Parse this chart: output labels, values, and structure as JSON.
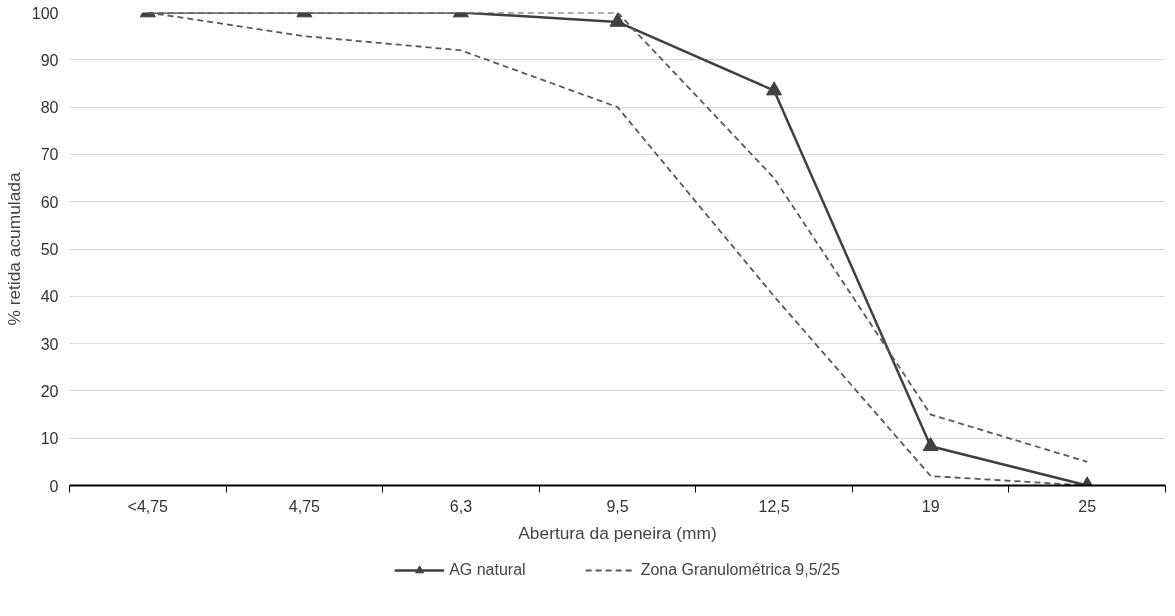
{
  "chart_data": {
    "type": "line",
    "xlabel": "Abertura da peneira (mm)",
    "ylabel": "% retida acumulada",
    "categories": [
      "<4,75",
      "4,75",
      "6,3",
      "9,5",
      "12,5",
      "19",
      "25"
    ],
    "series": [
      {
        "name": "AG natural",
        "color": "#404040",
        "marker": "triangle",
        "line_style": "solid",
        "values": [
          100,
          100,
          100,
          98,
          83.5,
          8.3,
          0
        ]
      },
      {
        "name": "Zona Granulométrica 9,5/25",
        "color": "#595959",
        "marker": "none",
        "line_style": "dashed",
        "values": [
          100,
          100,
          100,
          100,
          65,
          15,
          5
        ]
      },
      {
        "color": "#595959",
        "marker": "none",
        "line_style": "dashed",
        "values": [
          100,
          95,
          92,
          80,
          40,
          2,
          0
        ]
      }
    ],
    "ylim": [
      0,
      100
    ],
    "yticks": [
      0,
      10,
      20,
      30,
      40,
      50,
      60,
      70,
      80,
      90,
      100
    ],
    "grid": "y",
    "legend": "bottom"
  }
}
